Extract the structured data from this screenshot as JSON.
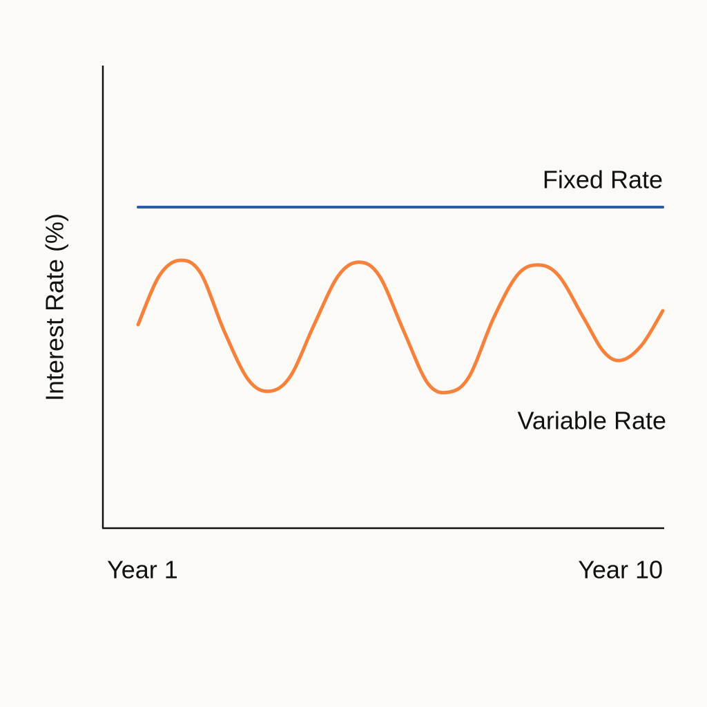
{
  "chart_data": {
    "type": "line",
    "y_label": "Interest Rate (%)",
    "xlim": [
      1,
      10
    ],
    "xticks": [
      {
        "value": 1,
        "label": "Year 1"
      },
      {
        "value": 10,
        "label": "Year 10"
      }
    ],
    "ylim": [
      0,
      100
    ],
    "series": [
      {
        "name": "Fixed Rate",
        "color": "#2a5caa",
        "x": [
          1,
          10
        ],
        "values": [
          69.4,
          69.4
        ]
      },
      {
        "name": "Variable Rate",
        "color": "#f5813a",
        "x": [
          1.0,
          1.36,
          1.71,
          2.07,
          2.48,
          2.89,
          3.25,
          3.61,
          4.02,
          4.43,
          4.79,
          5.14,
          5.56,
          5.97,
          6.33,
          6.68,
          7.1,
          7.51,
          7.87,
          8.22,
          8.64,
          8.99,
          9.29,
          9.64,
          10.0
        ],
        "values": [
          44.0,
          54.5,
          57.9,
          55.2,
          42.5,
          32.1,
          29.6,
          32.8,
          44.0,
          54.5,
          57.5,
          54.5,
          42.5,
          31.3,
          29.4,
          32.8,
          45.5,
          54.8,
          56.9,
          54.5,
          45.5,
          38.1,
          36.3,
          39.6,
          47.0
        ]
      }
    ]
  }
}
